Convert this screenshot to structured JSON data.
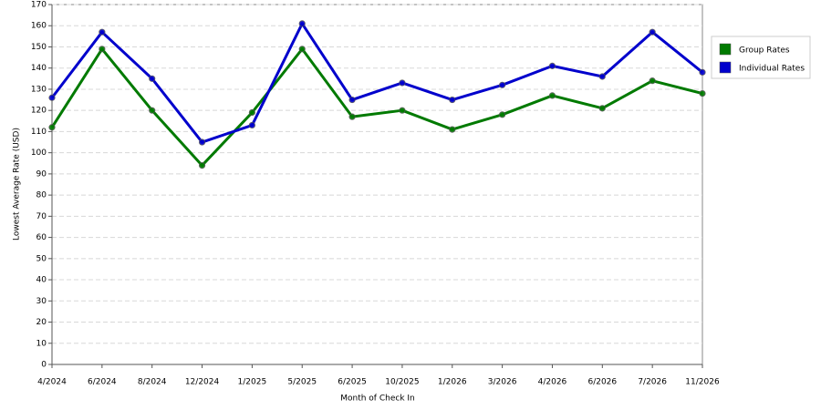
{
  "chart_data": {
    "type": "line",
    "x_label": "Month of Check In",
    "y_label": "Lowest Average Rate (USD)",
    "categories": [
      "4/2024",
      "6/2024",
      "8/2024",
      "12/2024",
      "1/2025",
      "5/2025",
      "6/2025",
      "10/2025",
      "1/2026",
      "3/2026",
      "4/2026",
      "6/2026",
      "7/2026",
      "11/2026"
    ],
    "series": [
      {
        "name": "Group Rates",
        "color": "#007a00",
        "values": [
          112,
          149,
          120,
          94,
          119,
          149,
          117,
          120,
          111,
          118,
          127,
          121,
          134,
          128
        ]
      },
      {
        "name": "Individual Rates",
        "color": "#0000cc",
        "values": [
          126,
          157,
          135,
          105,
          113,
          161,
          125,
          133,
          125,
          132,
          141,
          136,
          157,
          138
        ]
      }
    ],
    "ylim": [
      0,
      170
    ],
    "yticks": [
      0,
      10,
      20,
      30,
      40,
      50,
      60,
      70,
      80,
      90,
      100,
      110,
      120,
      130,
      140,
      150,
      160,
      170
    ],
    "grid": true,
    "legend": "right"
  }
}
